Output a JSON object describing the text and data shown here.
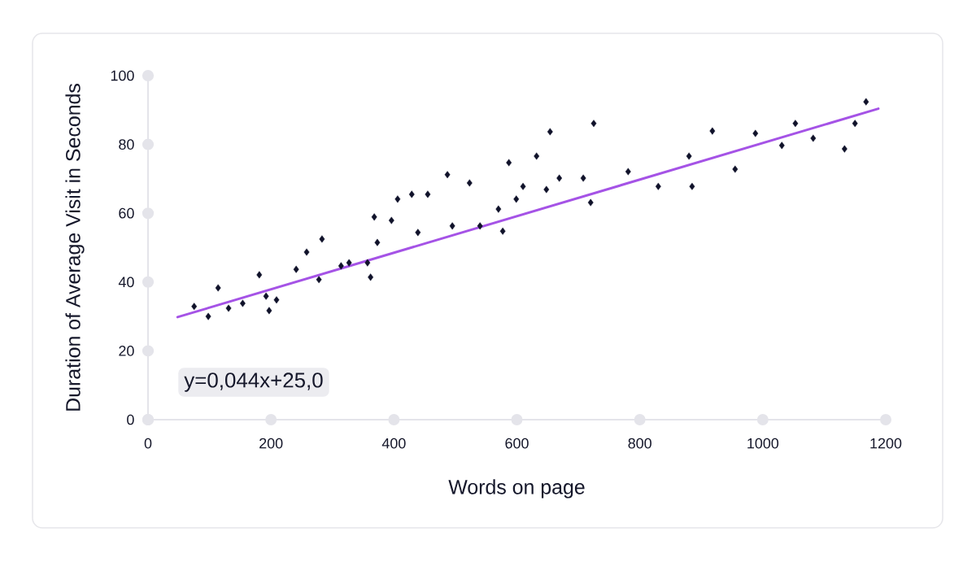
{
  "chart_data": {
    "type": "scatter",
    "xlabel": "Words on page",
    "ylabel": "Duration of Average Visit in Seconds",
    "annotations": [
      "y=0,044x+25,0"
    ],
    "xlim": [
      0,
      1200
    ],
    "ylim": [
      0,
      100
    ],
    "xticks": [
      0,
      200,
      400,
      600,
      800,
      1000,
      1200
    ],
    "yticks": [
      0,
      20,
      40,
      60,
      80,
      100
    ],
    "marker": "diamond",
    "series": [
      {
        "color": "#10122a",
        "x": [
          75,
          98,
          114,
          131,
          154,
          181,
          192,
          197,
          209,
          241,
          258,
          278,
          283,
          314,
          327,
          357,
          362,
          368,
          373,
          396,
          406,
          429,
          439,
          455,
          487,
          495,
          523,
          540,
          570,
          577,
          587,
          599,
          610,
          632,
          648,
          654,
          669,
          708,
          720,
          725,
          781,
          830,
          880,
          885,
          918,
          955,
          988,
          1031,
          1053,
          1082,
          1133,
          1150,
          1168
        ],
        "values": [
          32.9,
          30.0,
          38.3,
          32.4,
          33.8,
          42.1,
          35.9,
          31.7,
          34.8,
          43.7,
          48.7,
          40.7,
          52.5,
          44.7,
          45.6,
          45.6,
          41.4,
          58.9,
          51.5,
          57.9,
          64.1,
          65.5,
          54.4,
          65.5,
          71.2,
          56.3,
          68.8,
          56.3,
          61.2,
          54.8,
          74.7,
          64.1,
          67.8,
          76.6,
          66.9,
          83.7,
          70.2,
          70.2,
          63.1,
          86.1,
          72.1,
          67.8,
          76.6,
          67.8,
          83.9,
          72.8,
          83.2,
          79.7,
          86.1,
          81.8,
          78.7,
          86.1,
          92.4
        ]
      },
      {
        "type": "line",
        "color": "#a553e6",
        "marker": "none",
        "line_style": "solid",
        "x": [
          48,
          1188
        ],
        "values": [
          29.8,
          90.4
        ]
      }
    ]
  }
}
